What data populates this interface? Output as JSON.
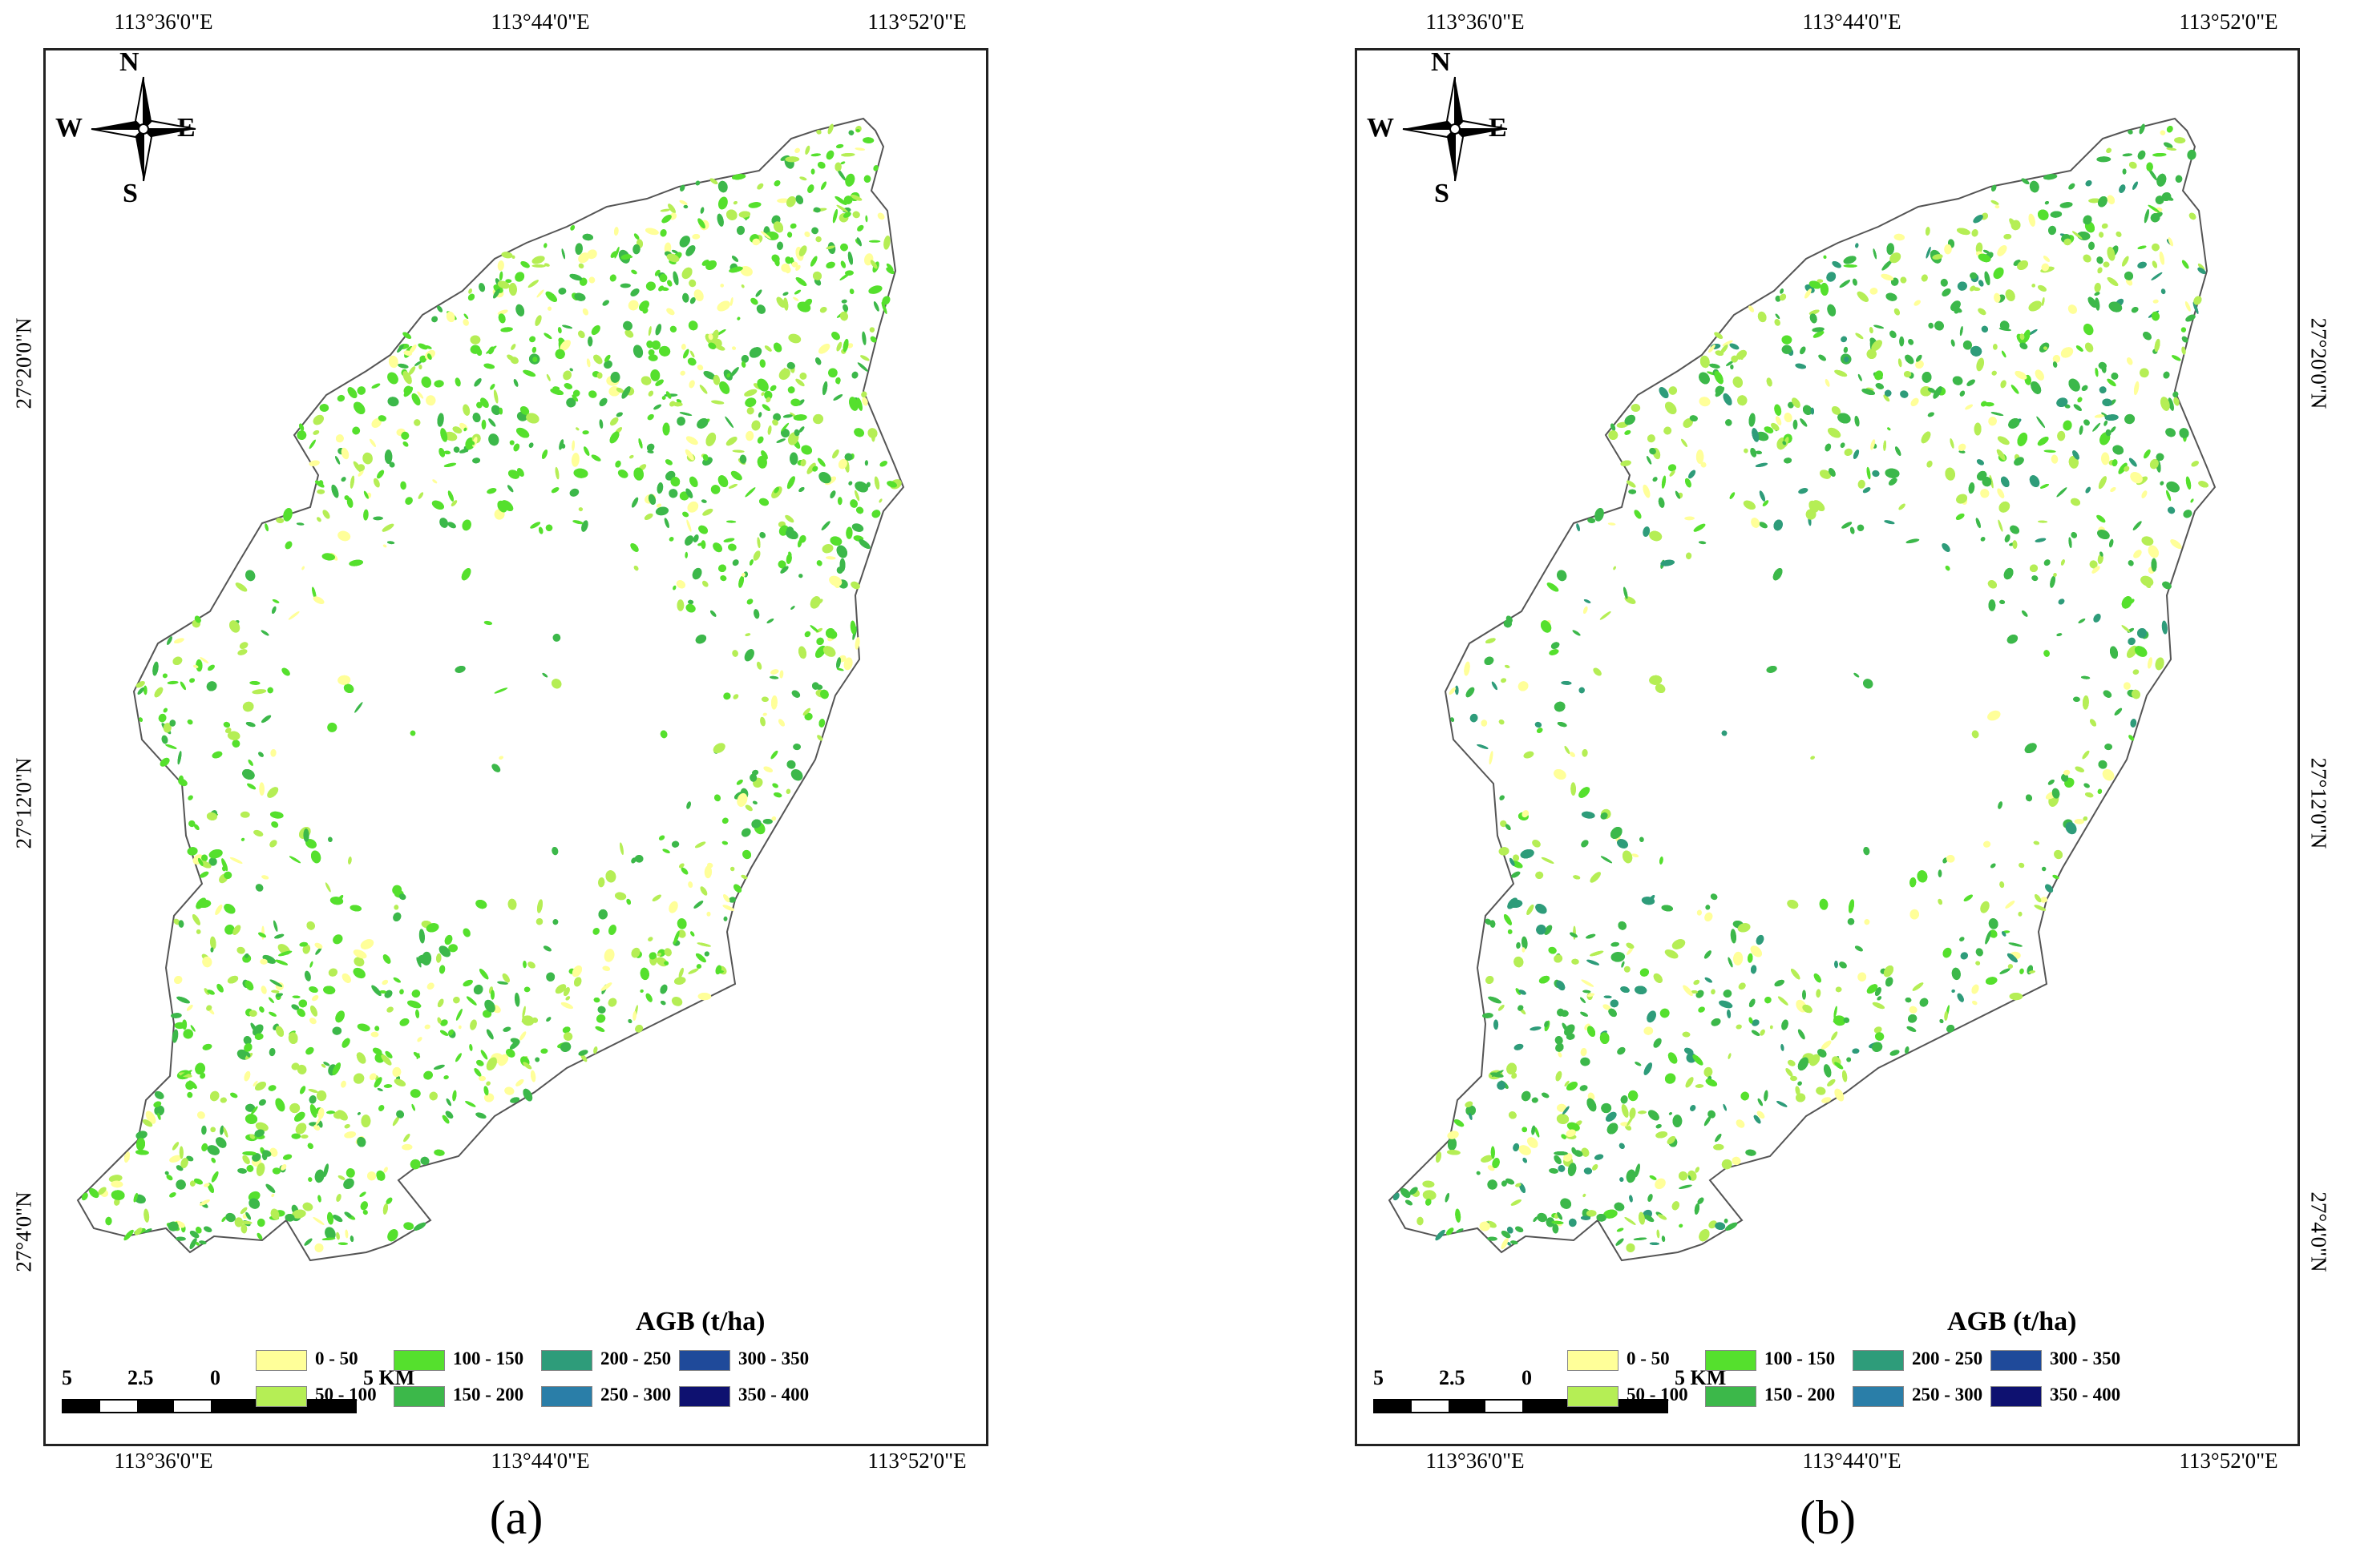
{
  "panels": [
    {
      "id": "a",
      "caption": "(a)",
      "top_coords": [
        "113°36'0\"E",
        "113°44'0\"E",
        "113°52'0\"E"
      ],
      "bottom_coords": [
        "113°36'0\"E",
        "113°44'0\"E",
        "113°52'0\"E"
      ],
      "left_coords": [
        "27°20'0\"N",
        "27°12'0\"N",
        "27°4'0\"N"
      ],
      "compass": {
        "n": "N",
        "s": "S",
        "e": "E",
        "w": "W"
      },
      "legend_title": "AGB (t/ha)",
      "scale_labels": [
        "5",
        "2.5",
        "0",
        "5 KM"
      ]
    },
    {
      "id": "b",
      "caption": "(b)",
      "top_coords": [
        "113°36'0\"E",
        "113°44'0\"E",
        "113°52'0\"E"
      ],
      "bottom_coords": [
        "113°36'0\"E",
        "113°44'0\"E",
        "113°52'0\"E"
      ],
      "right_coords": [
        "27°20'0\"N",
        "27°12'0\"N",
        "27°4'0\"N"
      ],
      "compass": {
        "n": "N",
        "s": "S",
        "e": "E",
        "w": "W"
      },
      "legend_title": "AGB (t/ha)",
      "scale_labels": [
        "5",
        "2.5",
        "0",
        "5 KM"
      ]
    }
  ],
  "legend": [
    {
      "label": "0 - 50",
      "color": "#ffff99"
    },
    {
      "label": "50 - 100",
      "color": "#b5ee55"
    },
    {
      "label": "100 - 150",
      "color": "#55e02d"
    },
    {
      "label": "150 - 200",
      "color": "#3cb84a"
    },
    {
      "label": "200 - 250",
      "color": "#2e9c7a"
    },
    {
      "label": "250 - 300",
      "color": "#2a7ea8"
    },
    {
      "label": "300 - 350",
      "color": "#1f4a9a"
    },
    {
      "label": "350 - 400",
      "color": "#0e1170"
    }
  ],
  "region_outline_color": "#555555"
}
